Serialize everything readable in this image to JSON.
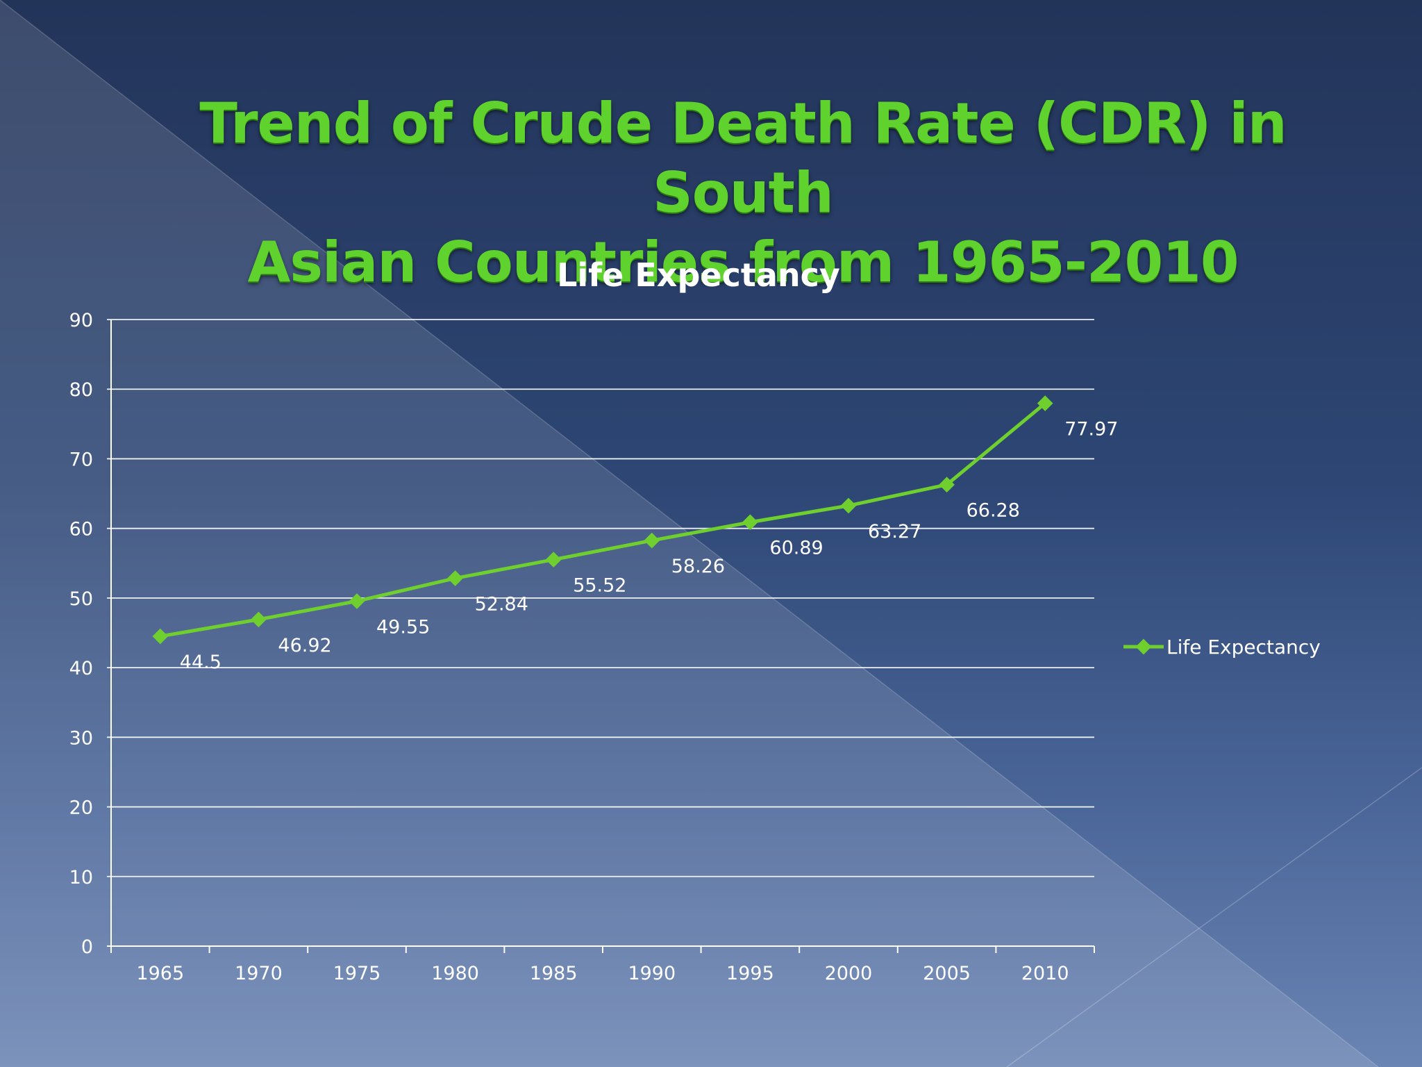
{
  "slide": {
    "title_line1": "Trend of Crude Death Rate (CDR) in South",
    "title_line2": "Asian Countries from 1965-2010"
  },
  "colors": {
    "title": "#5fd22e",
    "series": "#6fcf2f",
    "text": "#ffffff",
    "grid": "#ffffff"
  },
  "chart_data": {
    "type": "line",
    "title": "Life Expectancy",
    "xlabel": "",
    "ylabel": "",
    "categories": [
      "1965",
      "1970",
      "1975",
      "1980",
      "1985",
      "1990",
      "1995",
      "2000",
      "2005",
      "2010"
    ],
    "series": [
      {
        "name": "Life Expectancy",
        "values": [
          44.5,
          46.92,
          49.55,
          52.84,
          55.52,
          58.26,
          60.89,
          63.27,
          66.28,
          77.97
        ],
        "labels": [
          "44.5",
          "46.92",
          "49.55",
          "52.84",
          "55.52",
          "58.26",
          "60.89",
          "63.27",
          "66.28",
          "77.97"
        ]
      }
    ],
    "ylim": [
      0,
      90
    ],
    "yticks": [
      0,
      10,
      20,
      30,
      40,
      50,
      60,
      70,
      80,
      90
    ],
    "grid": true,
    "legend": "right"
  }
}
